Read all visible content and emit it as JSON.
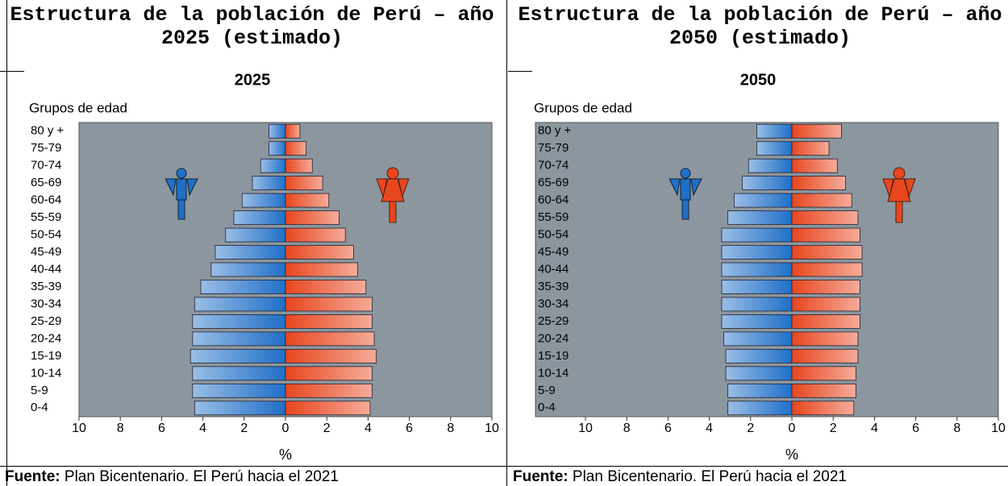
{
  "chart_data": [
    {
      "type": "pyramid",
      "title": "Estructura de la población de Perú – año 2025 (estimado)",
      "subtitle": "2025",
      "y_label": "Grupos de edad",
      "x_label": "%",
      "source_label": "Fuente:",
      "source": "Plan Bicentenario. El Perú hacia el 2021",
      "categories": [
        "80 y +",
        "75-79",
        "70-74",
        "65-69",
        "60-64",
        "55-59",
        "50-54",
        "45-49",
        "40-44",
        "35-39",
        "30-34",
        "25-29",
        "20-24",
        "15-19",
        "10-14",
        "5-9",
        "0-4"
      ],
      "series": [
        {
          "color": "#1f6fc8",
          "values": [
            -0.8,
            -0.8,
            -1.2,
            -1.6,
            -2.1,
            -2.5,
            -2.9,
            -3.4,
            -3.6,
            -4.1,
            -4.4,
            -4.5,
            -4.5,
            -4.6,
            -4.5,
            -4.5,
            -4.4
          ]
        },
        {
          "color": "#e8461e",
          "values": [
            0.7,
            1.0,
            1.3,
            1.8,
            2.1,
            2.6,
            2.9,
            3.3,
            3.5,
            3.9,
            4.2,
            4.2,
            4.3,
            4.4,
            4.2,
            4.2,
            4.1
          ]
        }
      ],
      "xlim": [
        -10,
        10
      ],
      "xticks": [
        {
          "value": -10,
          "label": "10"
        },
        {
          "value": -8,
          "label": "8"
        },
        {
          "value": -6,
          "label": "6"
        },
        {
          "value": -4,
          "label": "4"
        },
        {
          "value": -2,
          "label": "2"
        },
        0,
        2,
        4,
        6,
        8,
        10
      ]
    },
    {
      "type": "pyramid",
      "title": "Estructura de la población de Perú – año 2050 (estimado)",
      "subtitle": "2050",
      "y_label": "Grupos de edad",
      "x_label": "%",
      "source_label": "Fuente:",
      "source": "Plan Bicentenario. El Perú hacia el 2021",
      "categories": [
        "80 y +",
        "75-79",
        "70-74",
        "65-69",
        "60-64",
        "55-59",
        "50-54",
        "45-49",
        "40-44",
        "35-39",
        "30-34",
        "25-29",
        "20-24",
        "15-19",
        "10-14",
        "5-9",
        "0-4"
      ],
      "series": [
        {
          "color": "#1f6fc8",
          "values": [
            -1.7,
            -1.7,
            -2.1,
            -2.4,
            -2.8,
            -3.1,
            -3.4,
            -3.4,
            -3.4,
            -3.4,
            -3.4,
            -3.4,
            -3.3,
            -3.2,
            -3.2,
            -3.1,
            -3.1
          ]
        },
        {
          "color": "#e8461e",
          "values": [
            2.4,
            1.8,
            2.2,
            2.6,
            2.9,
            3.2,
            3.3,
            3.4,
            3.4,
            3.3,
            3.3,
            3.3,
            3.2,
            3.2,
            3.1,
            3.1,
            3.0
          ]
        }
      ],
      "xlim": [
        -10,
        10
      ],
      "xticks": [
        {
          "value": -10,
          "label": "10"
        },
        {
          "value": -8,
          "label": "8"
        },
        {
          "value": -6,
          "label": "6"
        },
        {
          "value": -4,
          "label": "4"
        },
        {
          "value": -2,
          "label": "2"
        },
        0,
        2,
        4,
        6,
        8,
        10
      ]
    }
  ]
}
